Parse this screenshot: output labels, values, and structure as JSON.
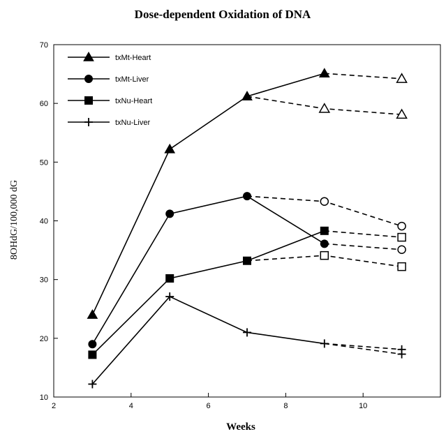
{
  "chart_data": {
    "type": "line",
    "title": "Dose-dependent Oxidation of DNA",
    "xlabel": "Weeks",
    "ylabel": "8OHdG/100,000 dG",
    "xlim": [
      2,
      12
    ],
    "ylim": [
      10,
      70
    ],
    "xticks": [
      2,
      4,
      6,
      8,
      10
    ],
    "yticks": [
      10,
      20,
      30,
      40,
      50,
      60,
      70
    ],
    "grid": false,
    "legend_position": "top-left",
    "series": [
      {
        "name": "txMt-Heart",
        "marker": "triangle",
        "solid": {
          "x": [
            3,
            5,
            7,
            9
          ],
          "y": [
            24,
            52.2,
            61.2,
            65.1
          ]
        },
        "dashed_branches": [
          {
            "x": [
              9,
              11
            ],
            "y": [
              65.1,
              64.2
            ]
          },
          {
            "x": [
              7,
              9,
              11
            ],
            "y": [
              61.2,
              59.1,
              58.1
            ]
          }
        ],
        "open_points": {
          "x": [
            9,
            11,
            11
          ],
          "y": [
            59.1,
            64.2,
            58.1
          ]
        }
      },
      {
        "name": "txMt-Liver",
        "marker": "circle",
        "solid": {
          "x": [
            3,
            5,
            7,
            9
          ],
          "y": [
            19,
            41.2,
            44.2,
            36.1
          ]
        },
        "dashed_branches": [
          {
            "x": [
              7,
              9,
              11
            ],
            "y": [
              44.2,
              43.3,
              39.1
            ]
          },
          {
            "x": [
              9,
              11
            ],
            "y": [
              36.1,
              35.1
            ]
          }
        ],
        "open_points": {
          "x": [
            9,
            11,
            11
          ],
          "y": [
            43.3,
            39.1,
            35.1
          ]
        }
      },
      {
        "name": "txNu-Heart",
        "marker": "square",
        "solid": {
          "x": [
            3,
            5,
            7,
            9
          ],
          "y": [
            17.2,
            30.2,
            33.2,
            38.3
          ]
        },
        "dashed_branches": [
          {
            "x": [
              9,
              11
            ],
            "y": [
              38.3,
              37.2
            ]
          },
          {
            "x": [
              7,
              9,
              11
            ],
            "y": [
              33.2,
              34.1,
              32.2
            ]
          }
        ],
        "open_points": {
          "x": [
            9,
            11,
            11
          ],
          "y": [
            34.1,
            37.2,
            32.2
          ]
        }
      },
      {
        "name": "txNu-Liver",
        "marker": "plus",
        "solid": {
          "x": [
            3,
            5,
            7,
            9
          ],
          "y": [
            12.2,
            27.1,
            21.0,
            19.1
          ]
        },
        "dashed_branches": [
          {
            "x": [
              9,
              11
            ],
            "y": [
              19.1,
              18.1
            ]
          },
          {
            "x": [
              9,
              11
            ],
            "y": [
              19.1,
              17.3
            ]
          }
        ],
        "open_points": {
          "x": [],
          "y": []
        }
      }
    ]
  }
}
